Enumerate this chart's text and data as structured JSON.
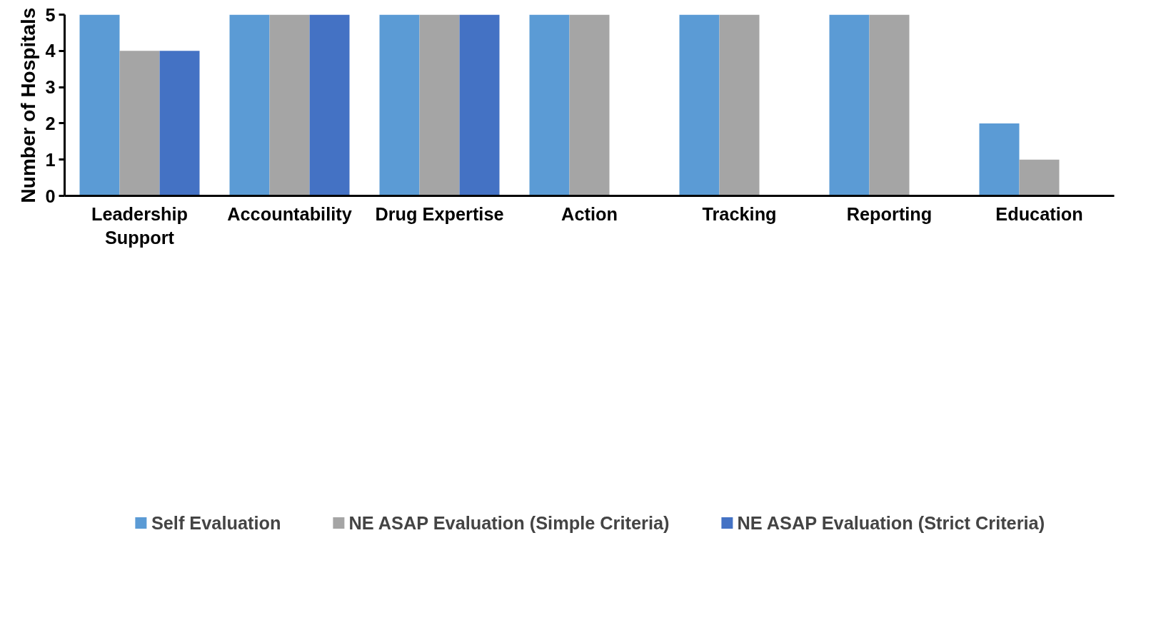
{
  "chart_data": {
    "type": "bar",
    "ylabel": "Number of Hospitals",
    "categories": [
      "Leadership Support",
      "Accountability",
      "Drug Expertise",
      "Action",
      "Tracking",
      "Reporting",
      "Education"
    ],
    "series": [
      {
        "name": "Self Evaluation",
        "color": "#5b9bd5",
        "values": [
          5,
          5,
          5,
          5,
          5,
          5,
          2
        ]
      },
      {
        "name": "NE ASAP Evaluation (Simple Criteria)",
        "color": "#a5a5a5",
        "values": [
          4,
          5,
          5,
          5,
          5,
          5,
          1
        ]
      },
      {
        "name": "NE ASAP Evaluation (Strict Criteria)",
        "color": "#4472c4",
        "values": [
          4,
          5,
          5,
          0,
          0,
          0,
          0
        ]
      }
    ],
    "ylim": [
      0,
      5
    ],
    "yticks": [
      0,
      1,
      2,
      3,
      4,
      5
    ],
    "grid": false,
    "legend": "bottom"
  }
}
